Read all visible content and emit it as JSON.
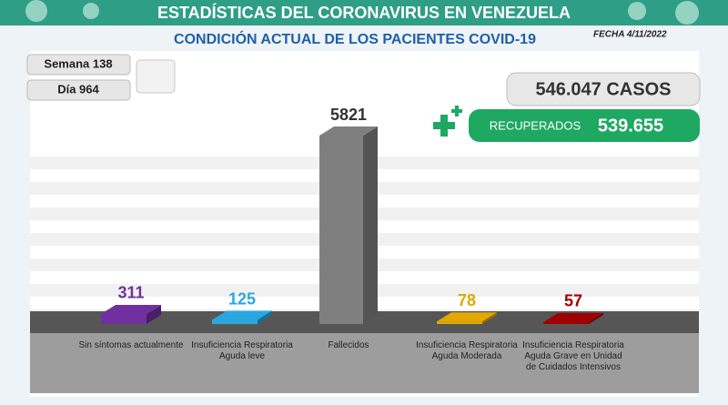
{
  "header": {
    "title": "ESTADÍSTICAS DEL CORONAVIRUS EN VENEZUELA",
    "subtitle": "CONDICIÓN ACTUAL DE LOS PACIENTES COVID-19",
    "date": "FECHA 4/11/2022",
    "week": "Semana 138",
    "day": "Día 964",
    "cases": "546.047 CASOS",
    "recovered_label": "RECUPERADOS",
    "recovered_value": "539.655"
  },
  "chart_data": {
    "type": "bar3d",
    "categories": [
      "Sin síntomas actualmente",
      "Insuficiencia Respiratoria Aguda leve",
      "Fallecidos",
      "Insuficiencia Respiratoria Aguda Moderada",
      "Insuficiencia Respiratoria Aguda Grave en Unidad de Cuidados Intensivos"
    ],
    "values": [
      311,
      125,
      5821,
      78,
      57
    ],
    "colors": [
      "#7030a0",
      "#29a8e0",
      "#7f7f7f",
      "#e0a800",
      "#a00000"
    ]
  }
}
